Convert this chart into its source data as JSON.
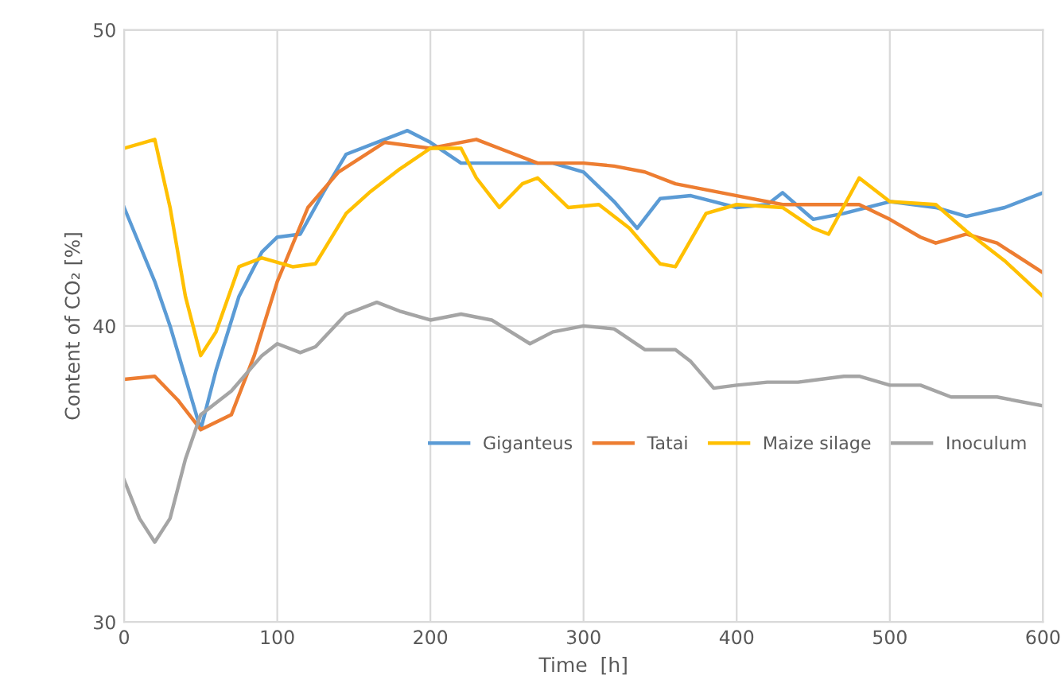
{
  "chart_data": {
    "type": "line",
    "xlabel": "Time  [h]",
    "ylabel": "Content of CO₂ [%]",
    "xlim": [
      0,
      600
    ],
    "ylim": [
      30,
      50
    ],
    "xticks": [
      0,
      100,
      200,
      300,
      400,
      500,
      600
    ],
    "yticks": [
      30,
      40,
      50
    ],
    "grid": true,
    "legend": "right",
    "marker": "none",
    "line_style": "solid",
    "series": [
      {
        "name": "Giganteus",
        "color": "#5b9bd5",
        "x": [
          0,
          20,
          30,
          50,
          60,
          75,
          90,
          100,
          115,
          130,
          145,
          165,
          185,
          200,
          220,
          240,
          260,
          280,
          300,
          320,
          335,
          350,
          370,
          400,
          420,
          430,
          450,
          470,
          500,
          530,
          550,
          575,
          600
        ],
        "values": [
          44.0,
          41.5,
          40.0,
          36.5,
          38.5,
          41.0,
          42.5,
          43.0,
          43.1,
          44.5,
          45.8,
          46.2,
          46.6,
          46.2,
          45.5,
          45.5,
          45.5,
          45.5,
          45.2,
          44.2,
          43.3,
          44.3,
          44.4,
          44.0,
          44.1,
          44.5,
          43.6,
          43.8,
          44.2,
          44.0,
          43.7,
          44.0,
          44.5
        ]
      },
      {
        "name": "Tatai",
        "color": "#ed7d31",
        "x": [
          0,
          20,
          35,
          50,
          70,
          85,
          100,
          120,
          140,
          170,
          200,
          230,
          250,
          270,
          300,
          320,
          340,
          360,
          400,
          430,
          460,
          480,
          500,
          520,
          530,
          550,
          570,
          600
        ],
        "values": [
          38.2,
          38.3,
          37.5,
          36.5,
          37.0,
          39.0,
          41.5,
          44.0,
          45.2,
          46.2,
          46.0,
          46.3,
          45.9,
          45.5,
          45.5,
          45.4,
          45.2,
          44.8,
          44.4,
          44.1,
          44.1,
          44.1,
          43.6,
          43.0,
          42.8,
          43.1,
          42.8,
          41.8
        ]
      },
      {
        "name": "Maize silage",
        "color": "#ffc000",
        "x": [
          0,
          20,
          30,
          40,
          50,
          60,
          75,
          90,
          110,
          125,
          145,
          160,
          180,
          200,
          220,
          230,
          245,
          260,
          270,
          290,
          310,
          330,
          350,
          360,
          380,
          400,
          430,
          450,
          460,
          480,
          500,
          530,
          550,
          575,
          600
        ],
        "values": [
          46.0,
          46.3,
          44.0,
          41.0,
          39.0,
          39.8,
          42.0,
          42.3,
          42.0,
          42.1,
          43.8,
          44.5,
          45.3,
          46.0,
          46.0,
          45.0,
          44.0,
          44.8,
          45.0,
          44.0,
          44.1,
          43.3,
          42.1,
          42.0,
          43.8,
          44.1,
          44.0,
          43.3,
          43.1,
          45.0,
          44.2,
          44.1,
          43.2,
          42.2,
          41.0
        ]
      },
      {
        "name": "Inoculum",
        "color": "#a5a5a5",
        "x": [
          0,
          10,
          20,
          30,
          40,
          50,
          70,
          90,
          100,
          115,
          125,
          145,
          165,
          180,
          200,
          220,
          240,
          265,
          280,
          300,
          320,
          340,
          360,
          370,
          385,
          400,
          420,
          440,
          470,
          480,
          500,
          520,
          540,
          570,
          600
        ],
        "values": [
          34.8,
          33.5,
          32.7,
          33.5,
          35.5,
          37.0,
          37.8,
          39.0,
          39.4,
          39.1,
          39.3,
          40.4,
          40.8,
          40.5,
          40.2,
          40.4,
          40.2,
          39.4,
          39.8,
          40.0,
          39.9,
          39.2,
          39.2,
          38.8,
          37.9,
          38.0,
          38.1,
          38.1,
          38.3,
          38.3,
          38.0,
          38.0,
          37.6,
          37.6,
          37.3
        ]
      }
    ]
  }
}
